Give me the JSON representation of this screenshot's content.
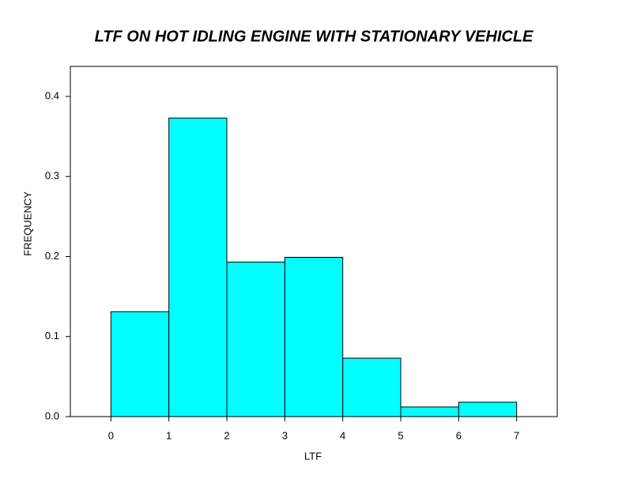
{
  "chart_data": {
    "type": "histogram",
    "title": "LTF ON HOT IDLING ENGINE WITH STATIONARY VEHICLE",
    "x_label": "LTF",
    "y_label": "FREQUENCY",
    "bins": [
      0,
      1,
      2,
      3,
      4,
      5,
      6,
      7
    ],
    "values": [
      0.131,
      0.373,
      0.193,
      0.199,
      0.073,
      0.012,
      0.018
    ],
    "color": "#00ffff",
    "xlim": [
      -0.7,
      7.7
    ],
    "xticks": [
      0,
      1,
      2,
      3,
      4,
      5,
      6,
      7
    ],
    "ylim": [
      0,
      0.4375
    ],
    "yticks": [
      {
        "value": 0,
        "label": "0.0"
      },
      0.1,
      0.2,
      0.3,
      0.4
    ]
  }
}
